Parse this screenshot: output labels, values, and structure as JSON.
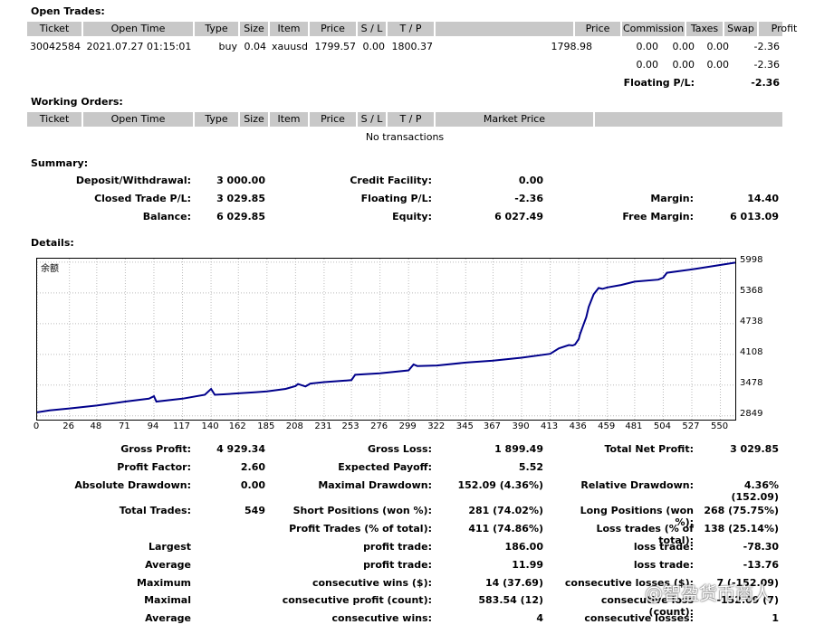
{
  "open_trades": {
    "title": "Open Trades:",
    "headers": [
      "Ticket",
      "Open Time",
      "Type",
      "Size",
      "Item",
      "Price",
      "S / L",
      "T / P",
      "",
      "Price",
      "Commission",
      "Taxes",
      "Swap",
      "Profit"
    ],
    "row": {
      "ticket": "30042584",
      "open_time": "2021.07.27 01:15:01",
      "type": "buy",
      "size": "0.04",
      "item": "xauusd",
      "price": "1799.57",
      "sl": "0.00",
      "tp": "1800.37",
      "cur_price": "1798.98",
      "commission": "0.00",
      "taxes": "0.00",
      "swap": "0.00",
      "profit": "-2.36"
    },
    "totals": {
      "commission": "0.00",
      "taxes": "0.00",
      "swap": "0.00",
      "profit": "-2.36"
    },
    "floating_label": "Floating P/L:",
    "floating_value": "-2.36"
  },
  "working_orders": {
    "title": "Working Orders:",
    "headers": [
      "Ticket",
      "Open Time",
      "Type",
      "Size",
      "Item",
      "Price",
      "S / L",
      "T / P",
      "Market Price",
      ""
    ],
    "empty": "No transactions"
  },
  "summary": {
    "title": "Summary:",
    "deposit_label": "Deposit/Withdrawal:",
    "deposit": "3 000.00",
    "credit_label": "Credit Facility:",
    "credit": "0.00",
    "closed_label": "Closed Trade P/L:",
    "closed": "3 029.85",
    "floating_label": "Floating P/L:",
    "floating": "-2.36",
    "margin_label": "Margin:",
    "margin": "14.40",
    "balance_label": "Balance:",
    "balance": "6 029.85",
    "equity_label": "Equity:",
    "equity": "6 027.49",
    "free_margin_label": "Free Margin:",
    "free_margin": "6 013.09"
  },
  "details": {
    "title": "Details:",
    "gross_profit_label": "Gross Profit:",
    "gross_profit": "4 929.34",
    "gross_loss_label": "Gross Loss:",
    "gross_loss": "1 899.49",
    "total_net_label": "Total Net Profit:",
    "total_net": "3 029.85",
    "profit_factor_label": "Profit Factor:",
    "profit_factor": "2.60",
    "expected_payoff_label": "Expected Payoff:",
    "expected_payoff": "5.52",
    "abs_dd_label": "Absolute Drawdown:",
    "abs_dd": "0.00",
    "max_dd_label": "Maximal Drawdown:",
    "max_dd": "152.09 (4.36%)",
    "rel_dd_label": "Relative Drawdown:",
    "rel_dd": "4.36% (152.09)",
    "total_trades_label": "Total Trades:",
    "total_trades": "549",
    "short_label": "Short Positions (won %):",
    "short": "281 (74.02%)",
    "long_label": "Long Positions (won %):",
    "long": "268 (75.75%)",
    "profit_trades_label": "Profit Trades (% of total):",
    "profit_trades": "411 (74.86%)",
    "loss_trades_label": "Loss trades (% of total):",
    "loss_trades": "138 (25.14%)",
    "largest_label": "Largest",
    "largest_pt_label": "profit trade:",
    "largest_pt": "186.00",
    "largest_lt_label": "loss trade:",
    "largest_lt": "-78.30",
    "average_label": "Average",
    "average_pt_label": "profit trade:",
    "average_pt": "11.99",
    "average_lt_label": "loss trade:",
    "average_lt": "-13.76",
    "maximum_label": "Maximum",
    "max_cw_label": "consecutive wins ($):",
    "max_cw": "14 (37.69)",
    "max_cl_label": "consecutive losses ($):",
    "max_cl": "7 (-152.09)",
    "maximal_label": "Maximal",
    "maxl_cp_label": "consecutive profit (count):",
    "maxl_cp": "583.54 (12)",
    "maxl_cl_label": "consecutive loss (count):",
    "maxl_cl": "-152.09 (7)",
    "average2_label": "Average",
    "avg_cw_label": "consecutive wins:",
    "avg_cw": "4",
    "avg_cl_label": "consecutive losses:",
    "avg_cl": "1"
  },
  "watermark": "@智盈货币商人",
  "chart_data": {
    "type": "line",
    "title": "余额",
    "x_ticks": [
      0,
      26,
      48,
      71,
      94,
      117,
      140,
      162,
      185,
      208,
      231,
      253,
      276,
      299,
      322,
      345,
      367,
      390,
      413,
      436,
      459,
      481,
      504,
      527,
      550
    ],
    "y_ticks": [
      2849,
      3478,
      4108,
      4738,
      5368,
      5998
    ],
    "xlim": [
      0,
      562
    ],
    "ylim": [
      2770,
      6070
    ],
    "grid": true,
    "line_color": "#00008b",
    "series": [
      {
        "x": [
          0,
          10,
          26,
          48,
          71,
          90,
          94,
          96,
          117,
          135,
          140,
          143,
          150,
          162,
          175,
          185,
          200,
          208,
          210,
          216,
          220,
          231,
          253,
          256,
          276,
          299,
          303,
          306,
          322,
          345,
          367,
          390,
          413,
          420,
          428,
          431,
          433,
          436,
          437,
          440,
          442,
          444,
          448,
          452,
          455,
          459,
          470,
          481,
          500,
          504,
          507,
          530,
          555,
          562
        ],
        "y": [
          2920,
          2960,
          3000,
          3060,
          3140,
          3200,
          3250,
          3140,
          3200,
          3280,
          3400,
          3280,
          3290,
          3310,
          3330,
          3350,
          3400,
          3460,
          3500,
          3450,
          3510,
          3540,
          3580,
          3690,
          3720,
          3780,
          3900,
          3870,
          3880,
          3940,
          3980,
          4040,
          4120,
          4230,
          4300,
          4290,
          4310,
          4420,
          4520,
          4730,
          4870,
          5080,
          5340,
          5470,
          5450,
          5480,
          5530,
          5600,
          5640,
          5680,
          5780,
          5860,
          5960,
          5990
        ]
      }
    ]
  }
}
